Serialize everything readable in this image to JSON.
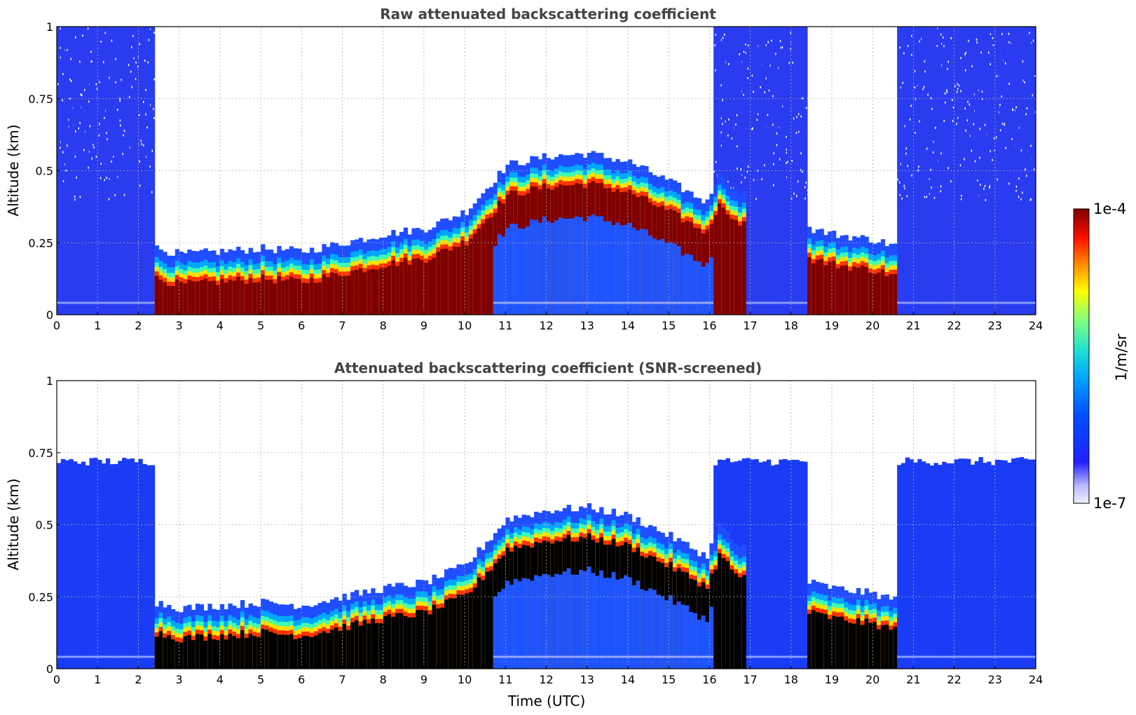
{
  "chart_data": [
    {
      "type": "heatmap",
      "title": "Raw attenuated backscattering coefficient",
      "xlabel": "",
      "ylabel": "Altitude (km)",
      "xlim": [
        0,
        24
      ],
      "ylim": [
        0,
        1
      ],
      "xticks": [
        "0",
        "1",
        "2",
        "3",
        "4",
        "5",
        "6",
        "7",
        "8",
        "9",
        "10",
        "11",
        "12",
        "13",
        "14",
        "15",
        "16",
        "17",
        "18",
        "19",
        "20",
        "21",
        "22",
        "23",
        "24"
      ],
      "yticks": [
        "0",
        "0.25",
        "0.5",
        "0.75",
        "1"
      ],
      "grid": true,
      "mode": "raw",
      "layer_top_km": [
        {
          "t": 2.4,
          "h": 0.19
        },
        {
          "t": 3,
          "h": 0.17
        },
        {
          "t": 4,
          "h": 0.18
        },
        {
          "t": 5,
          "h": 0.19
        },
        {
          "t": 6,
          "h": 0.18
        },
        {
          "t": 7,
          "h": 0.21
        },
        {
          "t": 8,
          "h": 0.24
        },
        {
          "t": 9,
          "h": 0.26
        },
        {
          "t": 10,
          "h": 0.32
        },
        {
          "t": 11,
          "h": 0.48
        },
        {
          "t": 12,
          "h": 0.51
        },
        {
          "t": 13,
          "h": 0.52
        },
        {
          "t": 14,
          "h": 0.49
        },
        {
          "t": 15,
          "h": 0.42
        },
        {
          "t": 15.9,
          "h": 0.35
        },
        {
          "t": 16.2,
          "h": 0.46
        },
        {
          "t": 16.7,
          "h": 0.38
        }
      ],
      "layer_top_km_late": [
        {
          "t": 18.4,
          "h": 0.26
        },
        {
          "t": 19,
          "h": 0.24
        },
        {
          "t": 20,
          "h": 0.22
        },
        {
          "t": 20.5,
          "h": 0.2
        }
      ],
      "clear_periods_utc": [
        [
          2.4,
          10.5
        ],
        [
          18.3,
          20.6
        ]
      ],
      "noisy_periods_utc": [
        [
          0,
          2.4
        ],
        [
          16.0,
          18.3
        ],
        [
          20.6,
          24
        ]
      ]
    },
    {
      "type": "heatmap",
      "title": "Attenuated backscattering coefficient (SNR-screened)",
      "xlabel": "Time (UTC)",
      "ylabel": "Altitude (km)",
      "xlim": [
        0,
        24
      ],
      "ylim": [
        0,
        1
      ],
      "xticks": [
        "0",
        "1",
        "2",
        "3",
        "4",
        "5",
        "6",
        "7",
        "8",
        "9",
        "10",
        "11",
        "12",
        "13",
        "14",
        "15",
        "16",
        "17",
        "18",
        "19",
        "20",
        "21",
        "22",
        "23",
        "24"
      ],
      "yticks": [
        "0",
        "0.25",
        "0.5",
        "0.75",
        "1"
      ],
      "grid": true,
      "mode": "screened",
      "screened_top_km": [
        {
          "t": 0,
          "h": 0.73
        },
        {
          "t": 2.4,
          "h": 0.72
        },
        {
          "t": 16.0,
          "h": 0.7
        },
        {
          "t": 18.3,
          "h": 0.72
        },
        {
          "t": 20.6,
          "h": 0.72
        },
        {
          "t": 24,
          "h": 0.7
        }
      ]
    }
  ],
  "colorbar": {
    "label": "1/m/sr",
    "max_label": "1e-4",
    "min_label": "1e-7",
    "scale": "log",
    "colormap": "jet"
  }
}
